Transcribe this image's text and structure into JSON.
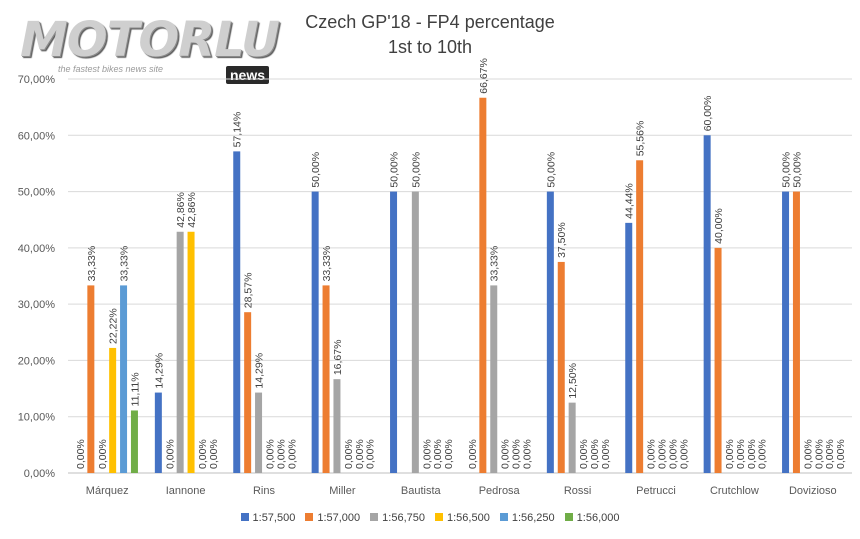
{
  "logo": {
    "name": "MOTORLU",
    "tagline": "the fastest bikes news site",
    "badge": "news"
  },
  "chart_data": {
    "type": "bar",
    "title": "Czech GP'18 - FP4 percentage",
    "subtitle": "1st to 10th",
    "xlabel": "",
    "ylabel": "",
    "ylim": [
      0,
      70
    ],
    "yticks": [
      "0,00%",
      "10,00%",
      "20,00%",
      "30,00%",
      "40,00%",
      "50,00%",
      "60,00%",
      "70,00%"
    ],
    "categories": [
      "Márquez",
      "Iannone",
      "Rins",
      "Miller",
      "Bautista",
      "Pedrosa",
      "Rossi",
      "Petrucci",
      "Crutchlow",
      "Dovizioso"
    ],
    "legend_position": "bottom",
    "series": [
      {
        "name": "1:57,500",
        "color": "#4472C4",
        "values": [
          0,
          14.29,
          57.14,
          50,
          50,
          0,
          50,
          44.44,
          60,
          50
        ],
        "labels": [
          "0,00%",
          "14,29%",
          "57,14%",
          "50,00%",
          "50,00%",
          "0,00%",
          "50,00%",
          "44,44%",
          "60,00%",
          "50,00%"
        ]
      },
      {
        "name": "1:57,000",
        "color": "#ED7D31",
        "values": [
          33.33,
          0,
          28.57,
          33.33,
          null,
          66.67,
          37.5,
          55.56,
          40,
          50
        ],
        "labels": [
          "33,33%",
          "0,00%",
          "28,57%",
          "33,33%",
          null,
          "66,67%",
          "37,50%",
          "55,56%",
          "40,00%",
          "50,00%"
        ]
      },
      {
        "name": "1:56,750",
        "color": "#A5A5A5",
        "values": [
          0,
          42.86,
          14.29,
          16.67,
          50,
          33.33,
          12.5,
          0,
          0,
          0
        ],
        "labels": [
          "0,00%",
          "42,86%",
          "14,29%",
          "16,67%",
          "50,00%",
          "33,33%",
          "12,50%",
          "0,00%",
          "0,00%",
          "0,00%"
        ]
      },
      {
        "name": "1:56,500",
        "color": "#FFC000",
        "values": [
          22.22,
          42.86,
          0,
          0,
          0,
          0,
          0,
          0,
          0,
          0
        ],
        "labels": [
          "22,22%",
          "42,86%",
          "0,00%",
          "0,00%",
          "0,00%",
          "0,00%",
          "0,00%",
          "0,00%",
          "0,00%",
          "0,00%"
        ]
      },
      {
        "name": "1:56,250",
        "color": "#5B9BD5",
        "values": [
          33.33,
          0,
          0,
          0,
          0,
          0,
          0,
          0,
          0,
          0
        ],
        "labels": [
          "33,33%",
          "0,00%",
          "0,00%",
          "0,00%",
          "0,00%",
          "0,00%",
          "0,00%",
          "0,00%",
          "0,00%",
          "0,00%"
        ]
      },
      {
        "name": "1:56,000",
        "color": "#70AD47",
        "values": [
          11.11,
          0,
          0,
          0,
          0,
          0,
          0,
          0,
          0,
          0
        ],
        "labels": [
          "11,11%",
          "0,00%",
          "0,00%",
          "0,00%",
          "0,00%",
          "0,00%",
          "0,00%",
          "0,00%",
          "0,00%",
          "0,00%"
        ]
      }
    ]
  }
}
